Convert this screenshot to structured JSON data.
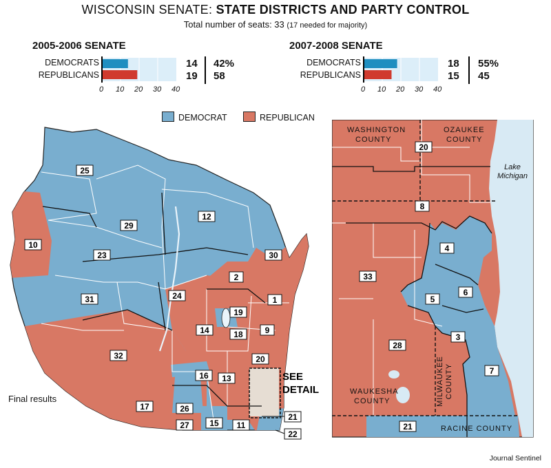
{
  "title": {
    "prefix": "WISCONSIN SENATE:",
    "main": "STATE DISTRICTS AND PARTY CONTROL"
  },
  "subtitle": {
    "text": "Total number of seats: 33",
    "note": "(17 needed for majority)"
  },
  "colors": {
    "democrat": "#79aecf",
    "republican": "#d87864",
    "dem_bar": "#1f8ec0",
    "rep_bar": "#d03a2e",
    "bar_bg": "#dceef9",
    "water": "#d8eaf4"
  },
  "senate_2005": {
    "title": "2005-2006 SENATE",
    "democrats": {
      "label": "DEMOCRATS",
      "count": "14",
      "pct": "42%",
      "value": 14
    },
    "republicans": {
      "label": "REPUBLICANS",
      "count": "19",
      "pct": "58",
      "value": 19
    },
    "ticks": [
      "0",
      "10",
      "20",
      "30",
      "40"
    ]
  },
  "senate_2007": {
    "title": "2007-2008 SENATE",
    "democrats": {
      "label": "DEMOCRATS",
      "count": "18",
      "pct": "55%",
      "value": 18
    },
    "republicans": {
      "label": "REPUBLICANS",
      "count": "15",
      "pct": "45",
      "value": 15
    },
    "ticks": [
      "0",
      "10",
      "20",
      "30",
      "40"
    ]
  },
  "legend": {
    "democrat": "DEMOCRAT",
    "republican": "REPUBLICAN"
  },
  "state_map": {
    "districts": [
      "25",
      "29",
      "12",
      "10",
      "23",
      "30",
      "2",
      "31",
      "24",
      "1",
      "19",
      "14",
      "18",
      "9",
      "32",
      "20",
      "16",
      "13",
      "26",
      "17",
      "27",
      "15",
      "11",
      "21",
      "22"
    ],
    "see_detail": [
      "SEE",
      "DETAIL"
    ]
  },
  "detail_map": {
    "counties": {
      "washington": [
        "WASHINGTON",
        "COUNTY"
      ],
      "ozaukee": [
        "OZAUKEE",
        "COUNTY"
      ],
      "waukesha": [
        "WAUKESHA",
        "COUNTY"
      ],
      "milwaukee": [
        "MILWAUKEE",
        "COUNTY"
      ],
      "racine": "RACINE COUNTY"
    },
    "lake": [
      "Lake",
      "Michigan"
    ],
    "districts": [
      "20",
      "8",
      "4",
      "33",
      "6",
      "5",
      "28",
      "3",
      "7",
      "21"
    ]
  },
  "final_results": "Final results",
  "credit": "Journal Sentinel"
}
